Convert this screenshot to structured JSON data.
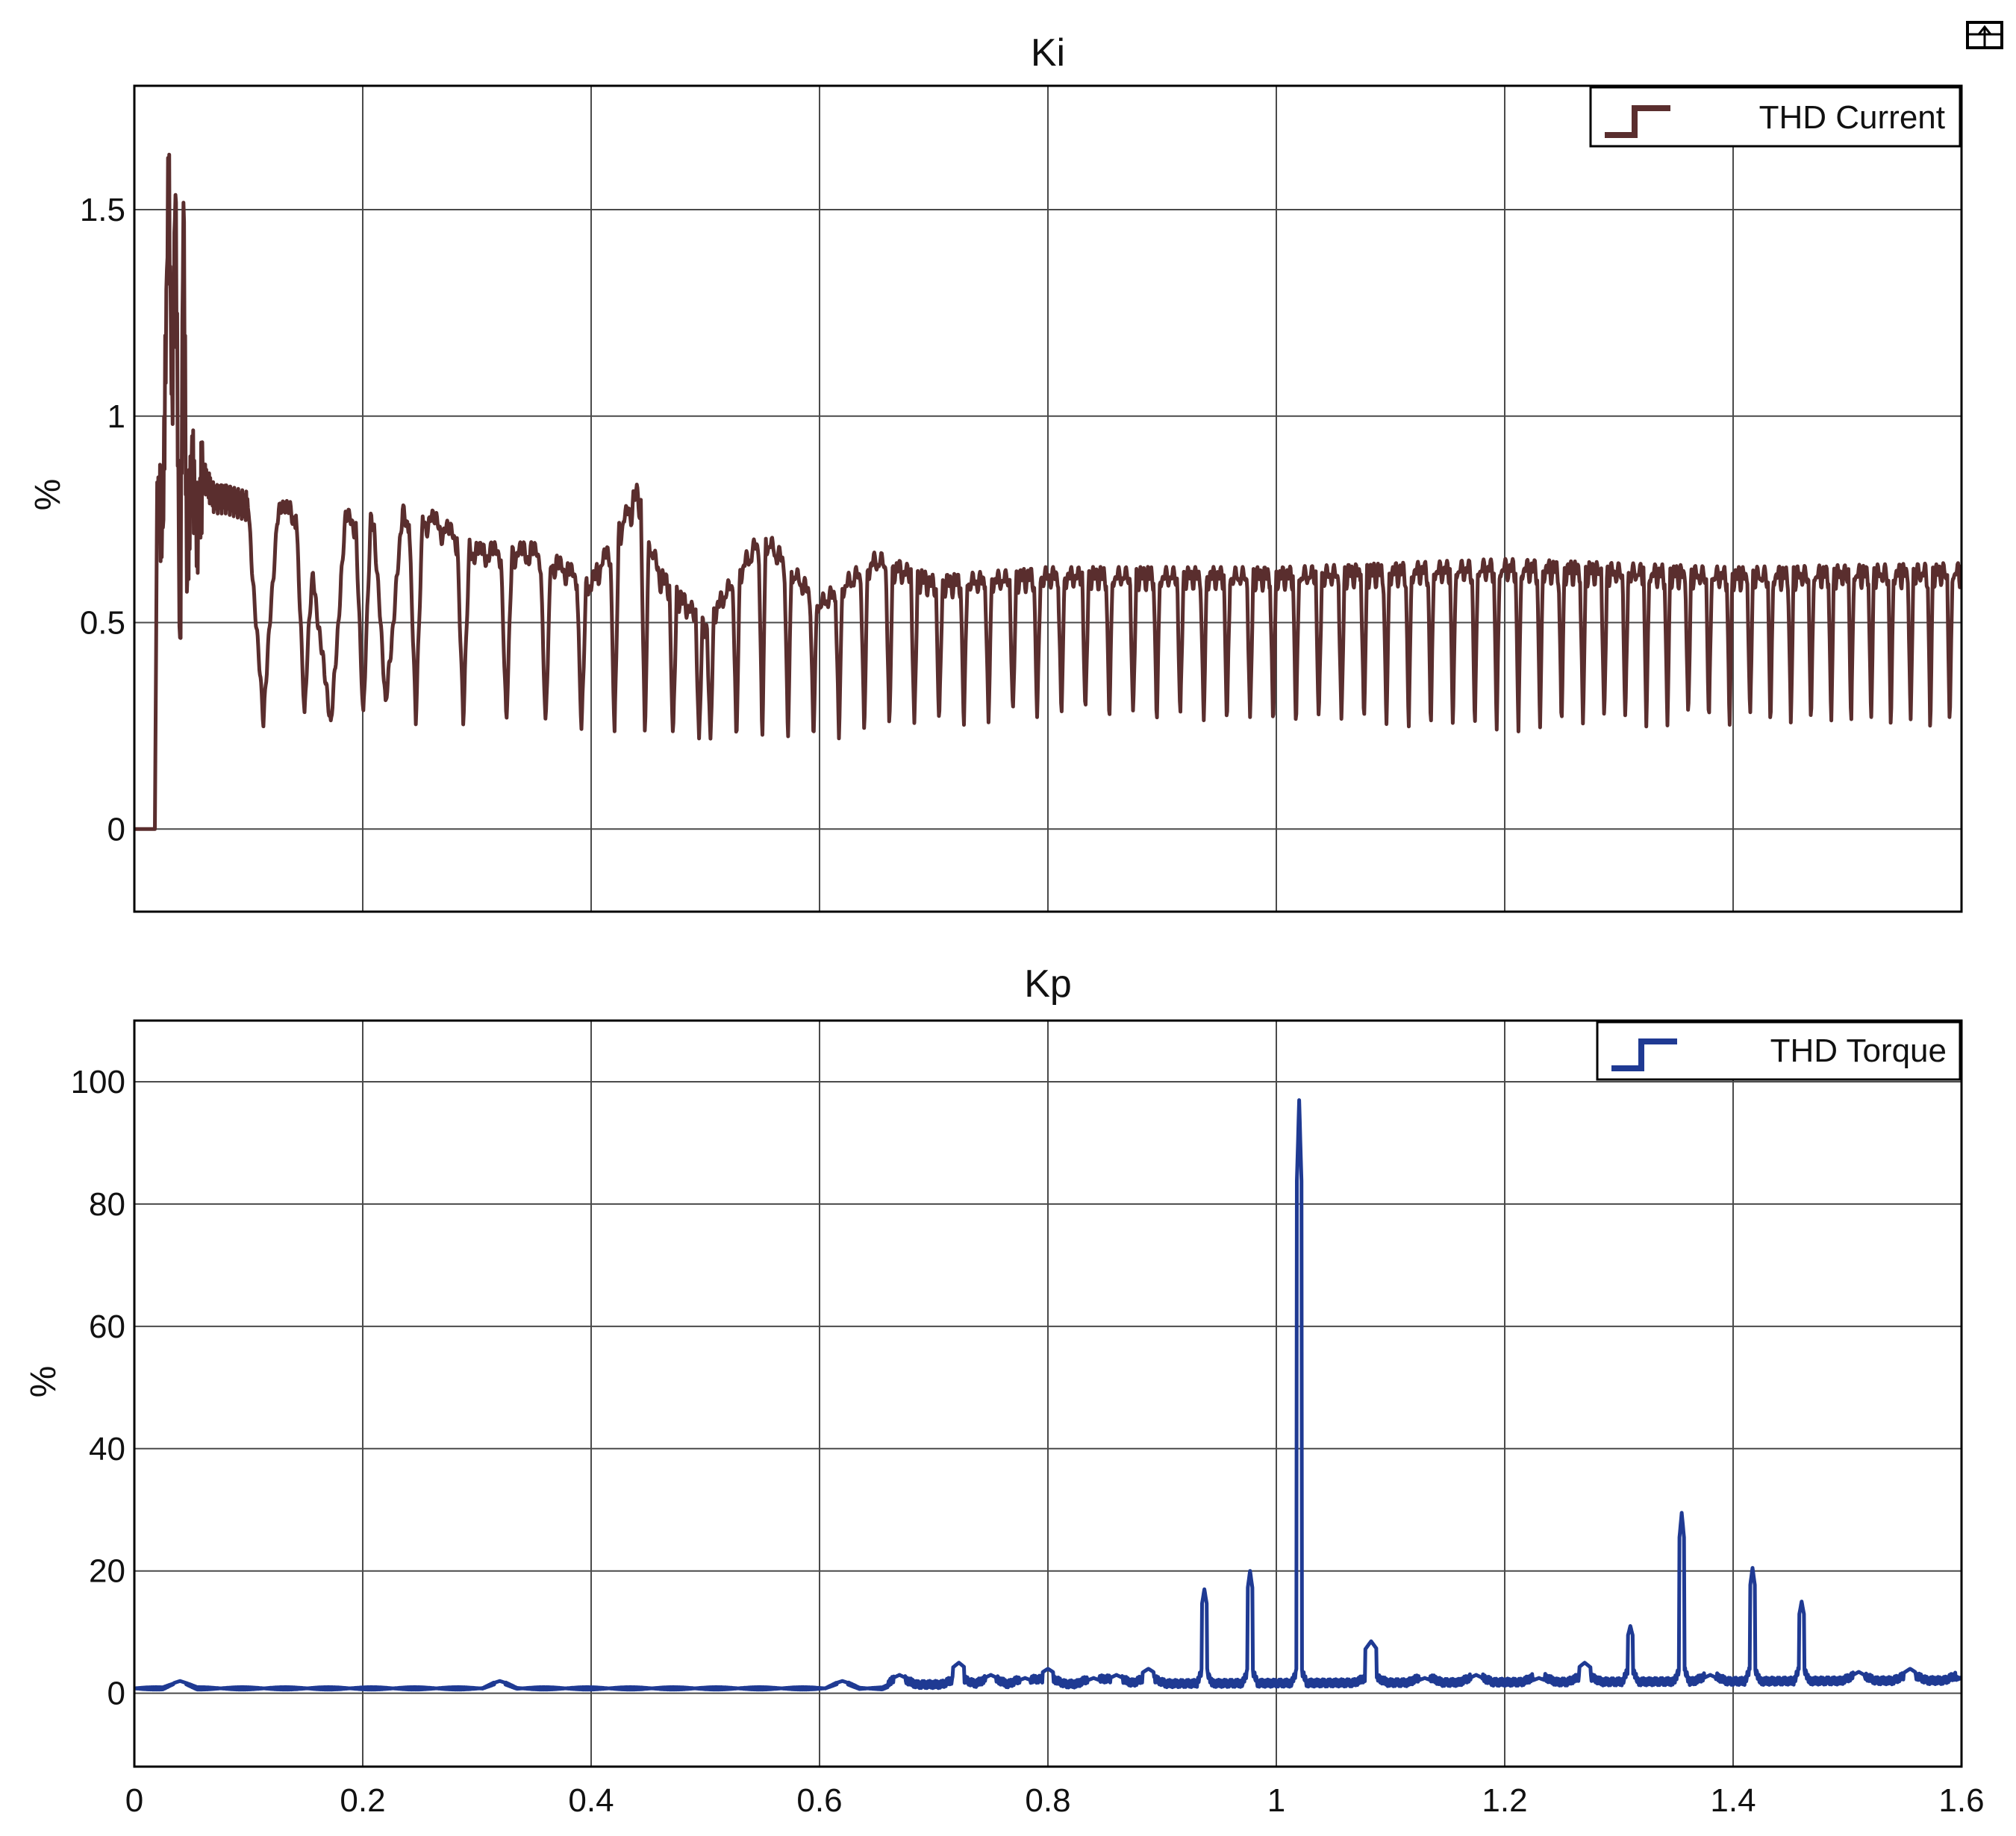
{
  "toolbar": {
    "icon": "undock-arrow-icon"
  },
  "chart_data": [
    {
      "type": "line",
      "title": "Ki",
      "xlabel": "",
      "ylabel": "%",
      "xlim": [
        0,
        1.6
      ],
      "ylim": [
        -0.2,
        1.8
      ],
      "xticks": [
        "",
        "",
        "",
        "",
        "",
        "",
        "",
        "",
        ""
      ],
      "yticks": [
        "0",
        "0.5",
        "1",
        "1.5"
      ],
      "ytick_values": [
        0,
        0.5,
        1,
        1.5
      ],
      "xtick_values": [
        0,
        0.2,
        0.4,
        0.6,
        0.8,
        1.0,
        1.2,
        1.4,
        1.6
      ],
      "grid": true,
      "legend_position": "top-right",
      "series": [
        {
          "name": "THD Current",
          "color": "#5a2e2e",
          "x": [
            0,
            0.018,
            0.02,
            0.025,
            0.03,
            0.033,
            0.036,
            0.04,
            0.043,
            0.046,
            0.05,
            0.055,
            0.06,
            0.07,
            0.08,
            0.1,
            0.113,
            0.125,
            0.15,
            0.172,
            0.185,
            0.21,
            0.22,
            0.235,
            0.26,
            0.3,
            0.35,
            0.4,
            0.44,
            0.46,
            0.5,
            0.55,
            0.6,
            0.65,
            0.7,
            0.8,
            1.0,
            1.2,
            1.4,
            1.6
          ],
          "y": [
            0,
            0,
            0.84,
            0.72,
            1.62,
            1.0,
            1.58,
            0.38,
            1.55,
            0.6,
            0.9,
            0.72,
            0.86,
            0.8,
            0.8,
            0.78,
            0.26,
            0.78,
            0.78,
            0.25,
            0.76,
            0.76,
            0.3,
            0.77,
            0.76,
            0.68,
            0.68,
            0.6,
            0.82,
            0.62,
            0.5,
            0.72,
            0.55,
            0.66,
            0.6,
            0.62,
            0.62,
            0.64,
            0.62,
            0.63
          ],
          "lower_envelope": {
            "x": [
              0.1,
              0.3,
              0.4,
              0.5,
              0.6,
              0.8,
              1.0,
              1.2,
              1.4,
              1.6
            ],
            "y": [
              0.27,
              0.26,
              0.23,
              0.2,
              0.22,
              0.27,
              0.25,
              0.25,
              0.25,
              0.24
            ]
          }
        }
      ]
    },
    {
      "type": "line",
      "title": "Kp",
      "xlabel": "",
      "ylabel": "%",
      "xlim": [
        0,
        1.6
      ],
      "ylim": [
        -12,
        110
      ],
      "xticks": [
        "0",
        "0.2",
        "0.4",
        "0.6",
        "0.8",
        "1",
        "1.2",
        "1.4",
        "1.6"
      ],
      "xtick_values": [
        0,
        0.2,
        0.4,
        0.6,
        0.8,
        1.0,
        1.2,
        1.4,
        1.6
      ],
      "yticks": [
        "0",
        "20",
        "40",
        "60",
        "80",
        "100"
      ],
      "ytick_values": [
        0,
        20,
        40,
        60,
        80,
        100
      ],
      "grid": true,
      "legend_position": "top-right",
      "series": [
        {
          "name": "THD Torque",
          "color": "#1f3a93",
          "baseline": {
            "x": [
              0,
              0.66,
              1.6
            ],
            "y": [
              0.8,
              0.8,
              1.5
            ]
          },
          "peaks": {
            "x": [
              0.04,
              0.32,
              0.62,
              0.67,
              0.722,
              0.75,
              0.78,
              0.8,
              0.84,
              0.86,
              0.888,
              0.937,
              0.977,
              1.02,
              1.083,
              1.13,
              1.175,
              1.23,
              1.27,
              1.31,
              1.355,
              1.38,
              1.417,
              1.46,
              1.51,
              1.555,
              1.6
            ],
            "y": [
              2,
              2,
              2,
              3,
              5,
              3,
              2.5,
              4,
              2.5,
              3,
              4,
              17,
              20,
              97,
              8.5,
              2.5,
              3,
              2.5,
              5,
              11,
              29.5,
              3,
              20.5,
              15,
              3.5,
              4,
              2.5
            ]
          }
        }
      ]
    }
  ]
}
